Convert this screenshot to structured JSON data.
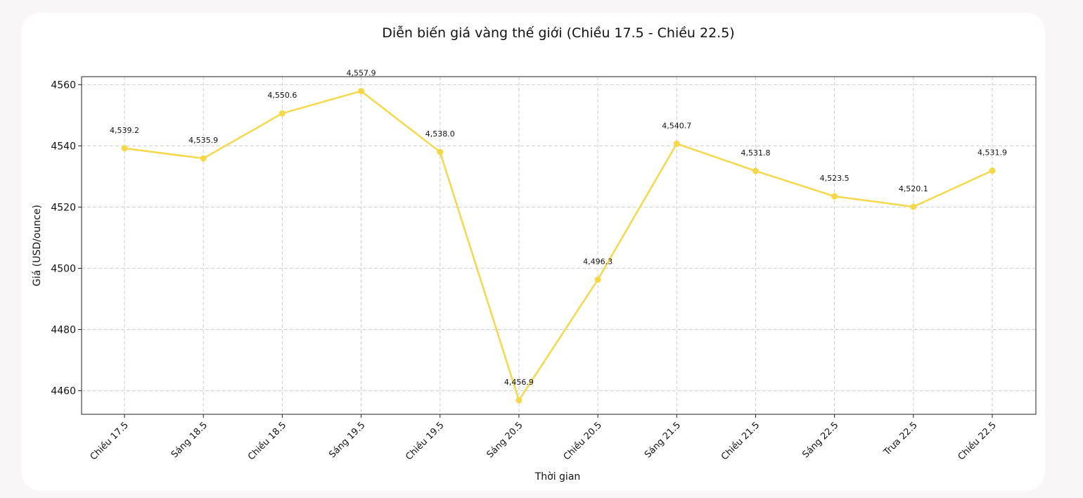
{
  "chart_data": {
    "type": "line",
    "title": "Diễn biến giá vàng thế giới (Chiều 17.5 - Chiều 22.5)",
    "xlabel": "Thời gian",
    "ylabel": "Giá (USD/ounce)",
    "categories": [
      "Chiều 17.5",
      "Sáng 18.5",
      "Chiều 18.5",
      "Sáng 19.5",
      "Chiều 19.5",
      "Sáng 20.5",
      "Chiều 20.5",
      "Sáng 21.5",
      "Chiều 21.5",
      "Sáng 22.5",
      "Trưa 22.5",
      "Chiều 22.5"
    ],
    "values": [
      4539.2,
      4535.9,
      4550.6,
      4557.9,
      4538.0,
      4456.9,
      4496.3,
      4540.7,
      4531.8,
      4523.5,
      4520.1,
      4531.9
    ],
    "data_labels": [
      "4,539.2",
      "4,535.9",
      "4,550.6",
      "4,557.9",
      "4,538.0",
      "4,456.9",
      "4,496.3",
      "4,540.7",
      "4,531.8",
      "4,523.5",
      "4,520.1",
      "4,531.9"
    ],
    "yticks": [
      4460,
      4480,
      4500,
      4520,
      4540,
      4560
    ],
    "ylim": [
      4452.3,
      4562.6
    ],
    "grid": true,
    "line_color": "#f5d84a"
  }
}
